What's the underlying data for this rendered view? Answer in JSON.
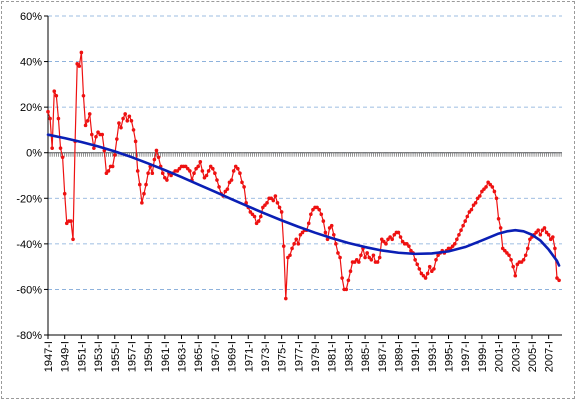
{
  "chart_data": {
    "type": "line",
    "title": "",
    "xlabel": "",
    "ylabel": "",
    "y_unit": "%",
    "ylim": [
      -80,
      60
    ],
    "y_ticks": [
      "60%",
      "40%",
      "20%",
      "0%",
      "-20%",
      "-40%",
      "-60%",
      "-80%"
    ],
    "y_tick_values": [
      60,
      40,
      20,
      0,
      -20,
      -40,
      -60,
      -80
    ],
    "grid": "horizontal-dashed",
    "legend": "none",
    "x_tick_labels": [
      "1947-I",
      "1949-I",
      "1951-I",
      "1953-I",
      "1955-I",
      "1957-I",
      "1959-I",
      "1961-I",
      "1963-I",
      "1965-I",
      "1967-I",
      "1969-I",
      "1971-I",
      "1973-I",
      "1975-I",
      "1977-I",
      "1979-I",
      "1981-I",
      "1983-I",
      "1985-I",
      "1987-I",
      "1989-I",
      "1991-I",
      "1993-I",
      "1995-I",
      "1997-I",
      "1999-I",
      "2001-I",
      "2003-I",
      "2005-I",
      "2007-I"
    ],
    "series": [
      {
        "color": "#ee1111",
        "style": "line-markers",
        "points": [
          [
            1947.0,
            18
          ],
          [
            1947.25,
            15
          ],
          [
            1947.5,
            2
          ],
          [
            1947.75,
            27
          ],
          [
            1948.0,
            25
          ],
          [
            1948.25,
            15
          ],
          [
            1948.5,
            2
          ],
          [
            1948.75,
            -2
          ],
          [
            1949.0,
            -18
          ],
          [
            1949.25,
            -31
          ],
          [
            1949.5,
            -30
          ],
          [
            1949.75,
            -30
          ],
          [
            1950.0,
            -38
          ],
          [
            1950.25,
            5
          ],
          [
            1950.5,
            39
          ],
          [
            1950.75,
            38
          ],
          [
            1951.0,
            44
          ],
          [
            1951.25,
            25
          ],
          [
            1951.5,
            12
          ],
          [
            1951.75,
            14
          ],
          [
            1952.0,
            17
          ],
          [
            1952.25,
            8
          ],
          [
            1952.5,
            2
          ],
          [
            1952.75,
            7
          ],
          [
            1953.0,
            9
          ],
          [
            1953.25,
            8
          ],
          [
            1953.5,
            8
          ],
          [
            1953.75,
            1
          ],
          [
            1954.0,
            -9
          ],
          [
            1954.25,
            -8
          ],
          [
            1954.5,
            -6
          ],
          [
            1954.75,
            -6
          ],
          [
            1955.0,
            -1
          ],
          [
            1955.25,
            6
          ],
          [
            1955.5,
            13
          ],
          [
            1955.75,
            11
          ],
          [
            1956.0,
            15
          ],
          [
            1956.25,
            17
          ],
          [
            1956.5,
            14
          ],
          [
            1956.75,
            16
          ],
          [
            1957.0,
            14
          ],
          [
            1957.25,
            10
          ],
          [
            1957.5,
            5
          ],
          [
            1957.75,
            -8
          ],
          [
            1958.0,
            -14
          ],
          [
            1958.25,
            -22
          ],
          [
            1958.5,
            -18
          ],
          [
            1958.75,
            -14
          ],
          [
            1959.0,
            -9
          ],
          [
            1959.25,
            -6
          ],
          [
            1959.5,
            -9
          ],
          [
            1959.75,
            -3
          ],
          [
            1960.0,
            1
          ],
          [
            1960.25,
            -2
          ],
          [
            1960.5,
            -6
          ],
          [
            1960.75,
            -9
          ],
          [
            1961.0,
            -11
          ],
          [
            1961.25,
            -12
          ],
          [
            1961.5,
            -9
          ],
          [
            1961.75,
            -10
          ],
          [
            1962.0,
            -9
          ],
          [
            1962.25,
            -8
          ],
          [
            1962.5,
            -8
          ],
          [
            1962.75,
            -7
          ],
          [
            1963.0,
            -6
          ],
          [
            1963.25,
            -6
          ],
          [
            1963.5,
            -6
          ],
          [
            1963.75,
            -7
          ],
          [
            1964.0,
            -8
          ],
          [
            1964.25,
            -12
          ],
          [
            1964.5,
            -9
          ],
          [
            1964.75,
            -7
          ],
          [
            1965.0,
            -6
          ],
          [
            1965.25,
            -4
          ],
          [
            1965.5,
            -8
          ],
          [
            1965.75,
            -11
          ],
          [
            1966.0,
            -10
          ],
          [
            1966.25,
            -8
          ],
          [
            1966.5,
            -6
          ],
          [
            1966.75,
            -7
          ],
          [
            1967.0,
            -9
          ],
          [
            1967.25,
            -12
          ],
          [
            1967.5,
            -15
          ],
          [
            1967.75,
            -18
          ],
          [
            1968.0,
            -19
          ],
          [
            1968.25,
            -17
          ],
          [
            1968.5,
            -16
          ],
          [
            1968.75,
            -13
          ],
          [
            1969.0,
            -12
          ],
          [
            1969.25,
            -8
          ],
          [
            1969.5,
            -6
          ],
          [
            1969.75,
            -7
          ],
          [
            1970.0,
            -9
          ],
          [
            1970.25,
            -13
          ],
          [
            1970.5,
            -15
          ],
          [
            1970.75,
            -22
          ],
          [
            1971.0,
            -24
          ],
          [
            1971.25,
            -26
          ],
          [
            1971.5,
            -27
          ],
          [
            1971.75,
            -28
          ],
          [
            1972.0,
            -31
          ],
          [
            1972.25,
            -30
          ],
          [
            1972.5,
            -28
          ],
          [
            1972.75,
            -24
          ],
          [
            1973.0,
            -23
          ],
          [
            1973.25,
            -22
          ],
          [
            1973.5,
            -20
          ],
          [
            1973.75,
            -20
          ],
          [
            1974.0,
            -21
          ],
          [
            1974.25,
            -19
          ],
          [
            1974.5,
            -22
          ],
          [
            1974.75,
            -24
          ],
          [
            1975.0,
            -26
          ],
          [
            1975.25,
            -41
          ],
          [
            1975.5,
            -64
          ],
          [
            1975.75,
            -46
          ],
          [
            1976.0,
            -45
          ],
          [
            1976.25,
            -42
          ],
          [
            1976.5,
            -40
          ],
          [
            1976.75,
            -38
          ],
          [
            1977.0,
            -40
          ],
          [
            1977.25,
            -36
          ],
          [
            1977.5,
            -35
          ],
          [
            1977.75,
            -34
          ],
          [
            1978.0,
            -34
          ],
          [
            1978.25,
            -31
          ],
          [
            1978.5,
            -27
          ],
          [
            1978.75,
            -25
          ],
          [
            1979.0,
            -24
          ],
          [
            1979.25,
            -24
          ],
          [
            1979.5,
            -25
          ],
          [
            1979.75,
            -27
          ],
          [
            1980.0,
            -30
          ],
          [
            1980.25,
            -35
          ],
          [
            1980.5,
            -38
          ],
          [
            1980.75,
            -33
          ],
          [
            1981.0,
            -32
          ],
          [
            1981.25,
            -36
          ],
          [
            1981.5,
            -40
          ],
          [
            1981.75,
            -44
          ],
          [
            1982.0,
            -46
          ],
          [
            1982.25,
            -55
          ],
          [
            1982.5,
            -60
          ],
          [
            1982.75,
            -60
          ],
          [
            1983.0,
            -56
          ],
          [
            1983.25,
            -52
          ],
          [
            1983.5,
            -48
          ],
          [
            1983.75,
            -48
          ],
          [
            1984.0,
            -47
          ],
          [
            1984.25,
            -48
          ],
          [
            1984.5,
            -45
          ],
          [
            1984.75,
            -42
          ],
          [
            1985.0,
            -46
          ],
          [
            1985.25,
            -44
          ],
          [
            1985.5,
            -46
          ],
          [
            1985.75,
            -47
          ],
          [
            1986.0,
            -45
          ],
          [
            1986.25,
            -48
          ],
          [
            1986.5,
            -48
          ],
          [
            1986.75,
            -46
          ],
          [
            1987.0,
            -38
          ],
          [
            1987.25,
            -39
          ],
          [
            1987.5,
            -40
          ],
          [
            1987.75,
            -38
          ],
          [
            1988.0,
            -37
          ],
          [
            1988.25,
            -38
          ],
          [
            1988.5,
            -36
          ],
          [
            1988.75,
            -35
          ],
          [
            1989.0,
            -35
          ],
          [
            1989.25,
            -37
          ],
          [
            1989.5,
            -39
          ],
          [
            1989.75,
            -40
          ],
          [
            1990.0,
            -40
          ],
          [
            1990.25,
            -41
          ],
          [
            1990.5,
            -43
          ],
          [
            1990.75,
            -44
          ],
          [
            1991.0,
            -47
          ],
          [
            1991.25,
            -49
          ],
          [
            1991.5,
            -51
          ],
          [
            1991.75,
            -53
          ],
          [
            1992.0,
            -54
          ],
          [
            1992.25,
            -55
          ],
          [
            1992.5,
            -53
          ],
          [
            1992.75,
            -50
          ],
          [
            1993.0,
            -52
          ],
          [
            1993.25,
            -51
          ],
          [
            1993.5,
            -47
          ],
          [
            1993.75,
            -45
          ],
          [
            1994.0,
            -44
          ],
          [
            1994.25,
            -43
          ],
          [
            1994.5,
            -44
          ],
          [
            1994.75,
            -43
          ],
          [
            1995.0,
            -42
          ],
          [
            1995.25,
            -42
          ],
          [
            1995.5,
            -41
          ],
          [
            1995.75,
            -40
          ],
          [
            1996.0,
            -38
          ],
          [
            1996.25,
            -36
          ],
          [
            1996.5,
            -34
          ],
          [
            1996.75,
            -32
          ],
          [
            1997.0,
            -30
          ],
          [
            1997.25,
            -28
          ],
          [
            1997.5,
            -26
          ],
          [
            1997.75,
            -25
          ],
          [
            1998.0,
            -23
          ],
          [
            1998.25,
            -22
          ],
          [
            1998.5,
            -20
          ],
          [
            1998.75,
            -19
          ],
          [
            1999.0,
            -17
          ],
          [
            1999.25,
            -16
          ],
          [
            1999.5,
            -15
          ],
          [
            1999.75,
            -13
          ],
          [
            2000.0,
            -14
          ],
          [
            2000.25,
            -15
          ],
          [
            2000.5,
            -17
          ],
          [
            2000.75,
            -20
          ],
          [
            2001.0,
            -29
          ],
          [
            2001.25,
            -33
          ],
          [
            2001.5,
            -42
          ],
          [
            2001.75,
            -43
          ],
          [
            2002.0,
            -44
          ],
          [
            2002.25,
            -45
          ],
          [
            2002.5,
            -47
          ],
          [
            2002.75,
            -50
          ],
          [
            2003.0,
            -54
          ],
          [
            2003.25,
            -49
          ],
          [
            2003.5,
            -48
          ],
          [
            2003.75,
            -48
          ],
          [
            2004.0,
            -47
          ],
          [
            2004.25,
            -45
          ],
          [
            2004.5,
            -42
          ],
          [
            2004.75,
            -38
          ],
          [
            2005.0,
            -37
          ],
          [
            2005.25,
            -36
          ],
          [
            2005.5,
            -35
          ],
          [
            2005.75,
            -34
          ],
          [
            2006.0,
            -36
          ],
          [
            2006.25,
            -34
          ],
          [
            2006.5,
            -33
          ],
          [
            2006.75,
            -35
          ],
          [
            2007.0,
            -36
          ],
          [
            2007.25,
            -38
          ],
          [
            2007.5,
            -37
          ],
          [
            2007.75,
            -42
          ],
          [
            2008.0,
            -55
          ],
          [
            2008.25,
            -56
          ]
        ]
      },
      {
        "color": "#0a1fb5",
        "style": "line",
        "points": [
          [
            1947,
            7.9
          ],
          [
            1949,
            6.4
          ],
          [
            1951,
            4.7
          ],
          [
            1953,
            2.8
          ],
          [
            1955,
            0.6
          ],
          [
            1957,
            -1.9
          ],
          [
            1959,
            -4.7
          ],
          [
            1961,
            -7.6
          ],
          [
            1963,
            -10.7
          ],
          [
            1965,
            -13.9
          ],
          [
            1967,
            -17.1
          ],
          [
            1969,
            -20.4
          ],
          [
            1971,
            -23.6
          ],
          [
            1973,
            -26.7
          ],
          [
            1975,
            -29.7
          ],
          [
            1977,
            -32.5
          ],
          [
            1979,
            -35.1
          ],
          [
            1981,
            -37.5
          ],
          [
            1983,
            -39.6
          ],
          [
            1985,
            -41.4
          ],
          [
            1987,
            -42.9
          ],
          [
            1989,
            -43.9
          ],
          [
            1991,
            -44.4
          ],
          [
            1993,
            -44.2
          ],
          [
            1995,
            -43.3
          ],
          [
            1997,
            -41.4
          ],
          [
            1999,
            -38.5
          ],
          [
            2001,
            -35.5
          ],
          [
            2002,
            -34.5
          ],
          [
            2003,
            -34.0
          ],
          [
            2004,
            -34.5
          ],
          [
            2005,
            -36.0
          ],
          [
            2006,
            -38.5
          ],
          [
            2007,
            -42.5
          ],
          [
            2008,
            -47.5
          ],
          [
            2008.25,
            -49.5
          ]
        ]
      }
    ]
  }
}
